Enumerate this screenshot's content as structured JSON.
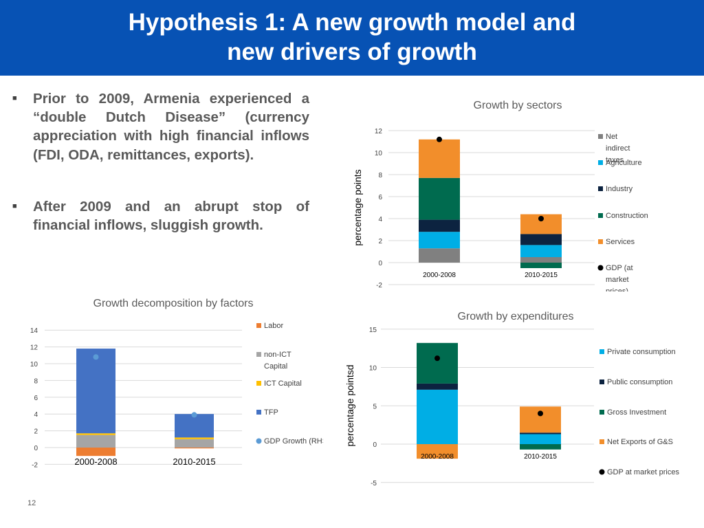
{
  "slide": {
    "title_line1": "Hypothesis 1: A new growth model and",
    "title_line2": "new drivers of growth",
    "colors": {
      "header": "#0752b4"
    },
    "bullets": [
      "Prior to 2009, Armenia experienced a “double Dutch Disease” (currency appreciation with high financial inflows (FDI, ODA, remittances, exports).",
      "After 2009 and an abrupt stop of financial inflows, sluggish growth."
    ],
    "bullet_icon": "square-bullet-icon",
    "page_number": "12"
  },
  "chart_data": [
    {
      "id": "sectors",
      "type": "bar",
      "stacked": true,
      "title": "Growth by sectors",
      "ylabel": "percentage points",
      "ylim": [
        -2,
        12
      ],
      "yticks": [
        -2,
        0,
        2,
        4,
        6,
        8,
        10,
        12
      ],
      "grid": true,
      "legend_position": "right",
      "categories": [
        "2000-2008",
        "2010-2015"
      ],
      "series": [
        {
          "name": "Net indirect taxes",
          "color": "#808080",
          "values": [
            1.3,
            0.5
          ]
        },
        {
          "name": "Agriculture",
          "color": "#00aee5",
          "values": [
            1.5,
            1.1
          ]
        },
        {
          "name": "Industry",
          "color": "#0c2340",
          "values": [
            1.1,
            1.0
          ]
        },
        {
          "name": "Construction",
          "color": "#006b4f",
          "values": [
            3.8,
            -0.5
          ]
        },
        {
          "name": "Services",
          "color": "#f28e2b",
          "values": [
            3.5,
            1.8
          ]
        }
      ],
      "markers": {
        "name": "GDP (at market prices)",
        "color": "#000000",
        "values": [
          11.2,
          4.0
        ]
      }
    },
    {
      "id": "factors",
      "type": "bar",
      "stacked": true,
      "title": "Growth decomposition by factors",
      "ylim": [
        -2,
        14
      ],
      "yticks": [
        -2,
        0,
        2,
        4,
        6,
        8,
        10,
        12,
        14
      ],
      "grid": true,
      "legend_position": "right",
      "categories": [
        "2000-2008",
        "2010-2015"
      ],
      "series": [
        {
          "name": "Labor",
          "color": "#ed7d31",
          "values": [
            -1.0,
            -0.1
          ]
        },
        {
          "name": "non-ICT Capital",
          "color": "#a5a5a5",
          "values": [
            1.5,
            1.0
          ]
        },
        {
          "name": "ICT Capital",
          "color": "#ffc000",
          "values": [
            0.2,
            0.2
          ]
        },
        {
          "name": "TFP",
          "color": "#4472c4",
          "values": [
            10.1,
            2.8
          ]
        }
      ],
      "markers": {
        "name": "GDP Growth (RHS)",
        "color": "#5b9bd5",
        "values": [
          10.8,
          3.9
        ]
      }
    },
    {
      "id": "expenditures",
      "type": "bar",
      "stacked": true,
      "title": "Growth by expenditures",
      "ylabel": "percentage pointsd",
      "ylim": [
        -5,
        15
      ],
      "yticks": [
        -5,
        0,
        5,
        10,
        15
      ],
      "grid": true,
      "legend_position": "right",
      "categories": [
        "2000-2008",
        "2010-2015"
      ],
      "series": [
        {
          "name": "Private consumption",
          "color": "#00aee5",
          "values": [
            7.1,
            1.3
          ]
        },
        {
          "name": "Public consumption",
          "color": "#0c2340",
          "values": [
            0.8,
            0.2
          ]
        },
        {
          "name": "Gross Investment",
          "color": "#006b4f",
          "values": [
            5.3,
            -0.7
          ]
        },
        {
          "name": "Net Exports of G&S",
          "color": "#f28e2b",
          "values": [
            -1.9,
            3.4
          ]
        }
      ],
      "markers": {
        "name": "GDP at market prices",
        "color": "#000000",
        "values": [
          11.2,
          4.0
        ]
      }
    }
  ]
}
